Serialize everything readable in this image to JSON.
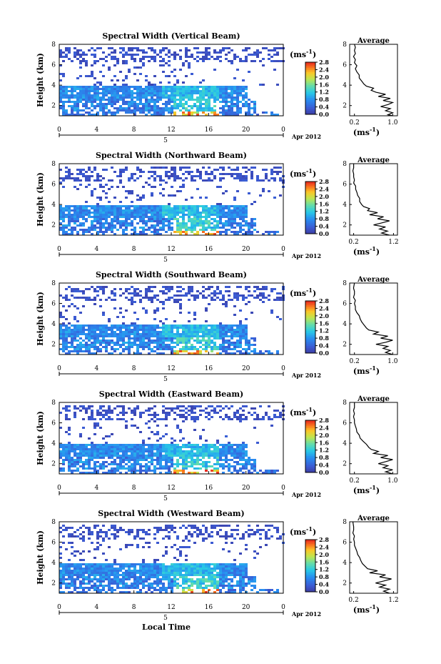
{
  "chart_data": [
    {
      "type": "heatmap",
      "title": "Spectral Width (Vertical Beam)",
      "ylabel": "Height (km)",
      "xticks": [
        "0",
        "4",
        "8",
        "12",
        "16",
        "20",
        "0"
      ],
      "yticks": [
        "2",
        "4",
        "6",
        "8"
      ],
      "xlim": [
        0,
        24
      ],
      "ylim": [
        1,
        8
      ],
      "date_tick": "5",
      "date_label": "Apr 2012",
      "colorbar": {
        "unit": "(ms",
        "unit_sup": "-1",
        "unit_close": ")",
        "ticks": [
          "0.0",
          "0.4",
          "0.8",
          "1.2",
          "1.6",
          "2.0",
          "2.4",
          "2.8"
        ],
        "range": [
          0,
          2.8
        ]
      },
      "profile": {
        "title": "Average",
        "xticks": [
          "0.2",
          "1.0"
        ],
        "xlabel": "(ms",
        "xlabel_sup": "-1",
        "xlabel_close": ")",
        "yticks": [
          "2",
          "4",
          "6",
          "8"
        ],
        "xlim": [
          0.1,
          1.1
        ],
        "ylim": [
          1,
          8
        ],
        "points": [
          [
            1.0,
            1.0
          ],
          [
            0.9,
            1.1
          ],
          [
            1.0,
            1.3
          ],
          [
            0.85,
            1.5
          ],
          [
            0.95,
            1.7
          ],
          [
            0.75,
            1.9
          ],
          [
            0.9,
            2.1
          ],
          [
            1.0,
            2.3
          ],
          [
            0.8,
            2.5
          ],
          [
            0.95,
            2.7
          ],
          [
            0.7,
            2.9
          ],
          [
            0.85,
            3.1
          ],
          [
            0.65,
            3.3
          ],
          [
            0.55,
            3.5
          ],
          [
            0.6,
            3.7
          ],
          [
            0.45,
            3.9
          ],
          [
            0.4,
            4.1
          ],
          [
            0.35,
            4.4
          ],
          [
            0.3,
            4.7
          ],
          [
            0.3,
            5.0
          ],
          [
            0.25,
            5.3
          ],
          [
            0.22,
            5.6
          ],
          [
            0.25,
            5.9
          ],
          [
            0.2,
            6.2
          ],
          [
            0.22,
            6.5
          ],
          [
            0.18,
            6.8
          ],
          [
            0.22,
            7.1
          ],
          [
            0.2,
            7.4
          ],
          [
            0.22,
            7.7
          ],
          [
            0.2,
            8.0
          ]
        ]
      }
    },
    {
      "type": "heatmap",
      "title": "Spectral Width (Northward Beam)",
      "ylabel": "Height (km)",
      "xticks": [
        "0",
        "4",
        "8",
        "12",
        "16",
        "20",
        "0"
      ],
      "yticks": [
        "2",
        "4",
        "6",
        "8"
      ],
      "xlim": [
        0,
        24
      ],
      "ylim": [
        1,
        8
      ],
      "date_tick": "5",
      "date_label": "Apr 2012",
      "colorbar": {
        "unit": "(ms",
        "unit_sup": "-1",
        "unit_close": ")",
        "ticks": [
          "0.0",
          "0.4",
          "0.8",
          "1.2",
          "1.6",
          "2.0",
          "2.4",
          "2.8"
        ],
        "range": [
          0,
          2.8
        ]
      },
      "profile": {
        "title": "Average",
        "xticks": [
          "0.2",
          "1.2"
        ],
        "xlabel": "(ms",
        "xlabel_sup": "-1",
        "xlabel_close": ")",
        "yticks": [
          "2",
          "4",
          "6",
          "8"
        ],
        "xlim": [
          0.1,
          1.3
        ],
        "ylim": [
          1,
          8
        ],
        "points": [
          [
            1.1,
            1.0
          ],
          [
            0.9,
            1.2
          ],
          [
            1.05,
            1.4
          ],
          [
            0.85,
            1.6
          ],
          [
            1.0,
            1.8
          ],
          [
            0.7,
            2.0
          ],
          [
            0.9,
            2.2
          ],
          [
            1.1,
            2.4
          ],
          [
            0.8,
            2.6
          ],
          [
            0.95,
            2.8
          ],
          [
            0.6,
            3.0
          ],
          [
            0.8,
            3.2
          ],
          [
            0.55,
            3.4
          ],
          [
            0.6,
            3.6
          ],
          [
            0.45,
            3.8
          ],
          [
            0.4,
            4.0
          ],
          [
            0.35,
            4.3
          ],
          [
            0.35,
            4.6
          ],
          [
            0.3,
            4.9
          ],
          [
            0.28,
            5.2
          ],
          [
            0.25,
            5.5
          ],
          [
            0.25,
            5.8
          ],
          [
            0.2,
            6.1
          ],
          [
            0.22,
            6.4
          ],
          [
            0.2,
            6.7
          ],
          [
            0.2,
            7.0
          ],
          [
            0.18,
            7.3
          ],
          [
            0.2,
            7.6
          ],
          [
            0.2,
            8.0
          ]
        ]
      }
    },
    {
      "type": "heatmap",
      "title": "Spectral Width (Southward Beam)",
      "ylabel": "Height (km)",
      "xticks": [
        "0",
        "4",
        "8",
        "12",
        "16",
        "20",
        "0"
      ],
      "yticks": [
        "2",
        "4",
        "6",
        "8"
      ],
      "xlim": [
        0,
        24
      ],
      "ylim": [
        1,
        8
      ],
      "date_tick": "5",
      "date_label": "Apr 2012",
      "colorbar": {
        "unit": "(ms",
        "unit_sup": "-1",
        "unit_close": ")",
        "ticks": [
          "0.0",
          "0.4",
          "0.8",
          "1.2",
          "1.6",
          "2.0",
          "2.4",
          "2.8"
        ],
        "range": [
          0,
          2.8
        ]
      },
      "profile": {
        "title": "Average",
        "xticks": [
          "0.2",
          "1.0"
        ],
        "xlabel": "(ms",
        "xlabel_sup": "-1",
        "xlabel_close": ")",
        "yticks": [
          "2",
          "4",
          "6",
          "8"
        ],
        "xlim": [
          0.1,
          1.1
        ],
        "ylim": [
          1,
          8
        ],
        "points": [
          [
            1.0,
            1.0
          ],
          [
            0.85,
            1.2
          ],
          [
            0.95,
            1.4
          ],
          [
            0.8,
            1.6
          ],
          [
            0.9,
            1.8
          ],
          [
            0.65,
            2.0
          ],
          [
            0.85,
            2.2
          ],
          [
            1.0,
            2.4
          ],
          [
            0.75,
            2.6
          ],
          [
            0.9,
            2.8
          ],
          [
            0.6,
            3.0
          ],
          [
            0.7,
            3.2
          ],
          [
            0.5,
            3.4
          ],
          [
            0.45,
            3.6
          ],
          [
            0.4,
            3.9
          ],
          [
            0.35,
            4.2
          ],
          [
            0.32,
            4.5
          ],
          [
            0.3,
            4.8
          ],
          [
            0.25,
            5.1
          ],
          [
            0.22,
            5.4
          ],
          [
            0.22,
            5.7
          ],
          [
            0.2,
            6.0
          ],
          [
            0.22,
            6.3
          ],
          [
            0.18,
            6.6
          ],
          [
            0.2,
            6.9
          ],
          [
            0.2,
            7.2
          ],
          [
            0.18,
            7.5
          ],
          [
            0.2,
            8.0
          ]
        ]
      }
    },
    {
      "type": "heatmap",
      "title": "Spectral Width (Eastward Beam)",
      "ylabel": "Height (km)",
      "xticks": [
        "0",
        "4",
        "8",
        "12",
        "16",
        "20",
        "0"
      ],
      "yticks": [
        "2",
        "4",
        "6",
        "8"
      ],
      "xlim": [
        0,
        24
      ],
      "ylim": [
        1,
        8
      ],
      "date_tick": "5",
      "date_label": "Apr 2012",
      "colorbar": {
        "unit": "(ms",
        "unit_sup": "-1",
        "unit_close": ")",
        "ticks": [
          "0.0",
          "0.4",
          "0.8",
          "1.2",
          "1.6",
          "2.0",
          "2.4",
          "2.8"
        ],
        "range": [
          0,
          2.8
        ]
      },
      "profile": {
        "title": "Average",
        "xticks": [
          "0.2",
          "1.0"
        ],
        "xlabel": "(ms",
        "xlabel_sup": "-1",
        "xlabel_close": ")",
        "yticks": [
          "2",
          "4",
          "6",
          "8"
        ],
        "xlim": [
          0.1,
          1.1
        ],
        "ylim": [
          1,
          8
        ],
        "points": [
          [
            1.0,
            1.0
          ],
          [
            0.85,
            1.2
          ],
          [
            1.0,
            1.4
          ],
          [
            0.8,
            1.6
          ],
          [
            0.9,
            1.8
          ],
          [
            0.7,
            2.0
          ],
          [
            0.85,
            2.2
          ],
          [
            1.0,
            2.4
          ],
          [
            0.75,
            2.6
          ],
          [
            0.9,
            2.8
          ],
          [
            0.6,
            3.0
          ],
          [
            0.7,
            3.2
          ],
          [
            0.55,
            3.4
          ],
          [
            0.5,
            3.6
          ],
          [
            0.45,
            3.9
          ],
          [
            0.38,
            4.2
          ],
          [
            0.32,
            4.5
          ],
          [
            0.3,
            4.8
          ],
          [
            0.25,
            5.1
          ],
          [
            0.24,
            5.4
          ],
          [
            0.22,
            5.7
          ],
          [
            0.2,
            6.0
          ],
          [
            0.2,
            6.3
          ],
          [
            0.18,
            6.6
          ],
          [
            0.2,
            6.9
          ],
          [
            0.18,
            7.2
          ],
          [
            0.2,
            7.5
          ],
          [
            0.2,
            8.0
          ]
        ]
      }
    },
    {
      "type": "heatmap",
      "title": "Spectral Width (Westward Beam)",
      "ylabel": "Height (km)",
      "xticks": [
        "0",
        "4",
        "8",
        "12",
        "16",
        "20",
        "0"
      ],
      "yticks": [
        "2",
        "4",
        "6",
        "8"
      ],
      "xlim": [
        0,
        24
      ],
      "ylim": [
        1,
        8
      ],
      "date_tick": "5",
      "date_label": "Apr 2012",
      "xlabel": "Local Time",
      "colorbar": {
        "unit": "(ms",
        "unit_sup": "-1",
        "unit_close": ")",
        "ticks": [
          "0.0",
          "0.4",
          "0.8",
          "1.2",
          "1.6",
          "2.0",
          "2.4",
          "2.8"
        ],
        "range": [
          0,
          2.8
        ]
      },
      "profile": {
        "title": "Average",
        "xticks": [
          "0.2",
          "1.2"
        ],
        "xlabel": "(ms",
        "xlabel_sup": "-1",
        "xlabel_close": ")",
        "yticks": [
          "2",
          "4",
          "6",
          "8"
        ],
        "xlim": [
          0.1,
          1.3
        ],
        "ylim": [
          1,
          8
        ],
        "points": [
          [
            1.1,
            1.0
          ],
          [
            0.95,
            1.2
          ],
          [
            1.1,
            1.4
          ],
          [
            0.85,
            1.6
          ],
          [
            1.0,
            1.8
          ],
          [
            0.75,
            2.0
          ],
          [
            0.95,
            2.2
          ],
          [
            1.15,
            2.4
          ],
          [
            0.85,
            2.6
          ],
          [
            1.0,
            2.8
          ],
          [
            0.6,
            3.0
          ],
          [
            0.8,
            3.2
          ],
          [
            0.55,
            3.4
          ],
          [
            0.5,
            3.6
          ],
          [
            0.42,
            3.9
          ],
          [
            0.38,
            4.2
          ],
          [
            0.35,
            4.5
          ],
          [
            0.3,
            4.8
          ],
          [
            0.28,
            5.1
          ],
          [
            0.25,
            5.4
          ],
          [
            0.22,
            5.7
          ],
          [
            0.22,
            6.0
          ],
          [
            0.2,
            6.3
          ],
          [
            0.22,
            6.6
          ],
          [
            0.18,
            6.9
          ],
          [
            0.2,
            7.2
          ],
          [
            0.2,
            7.5
          ],
          [
            0.18,
            8.0
          ]
        ]
      }
    }
  ]
}
